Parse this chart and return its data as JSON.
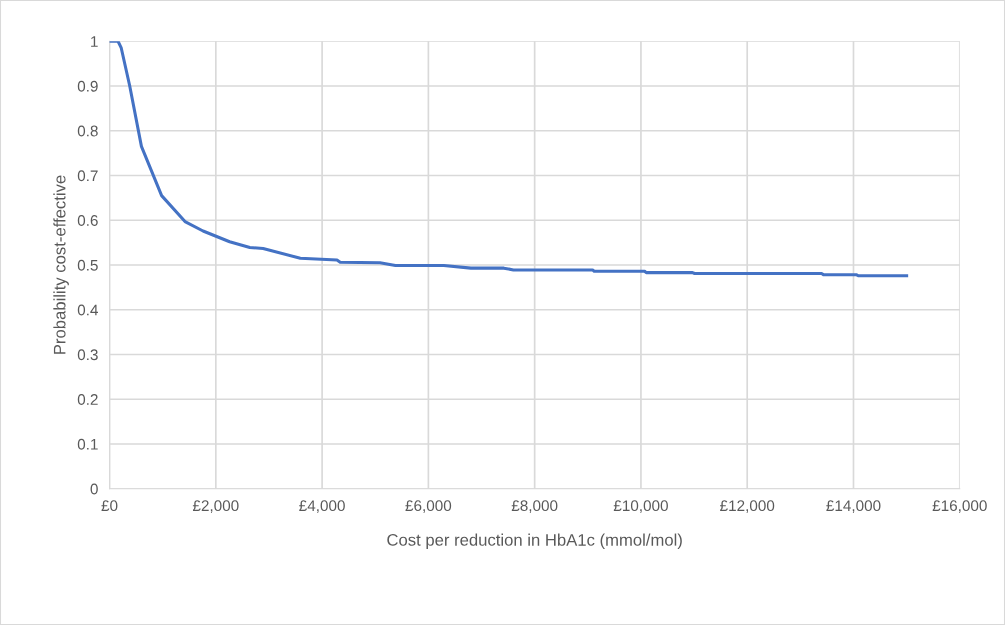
{
  "chart_data": {
    "type": "line",
    "xlabel": "Cost per reduction in HbA1c (mmol/mol)",
    "ylabel": "Probability cost-effective",
    "series": [
      {
        "color": "#4472c4",
        "x": [
          0,
          160,
          220,
          380,
          600,
          980,
          1420,
          1760,
          2260,
          2640,
          2890,
          3590,
          4280,
          4340,
          5090,
          5380,
          6290,
          6800,
          7420,
          7600,
          9090,
          9120,
          10070,
          10100,
          10970,
          11010,
          13400,
          13440,
          14060,
          14090,
          15000
        ],
        "values": [
          1.0,
          1.0,
          0.985,
          0.9,
          0.765,
          0.655,
          0.597,
          0.576,
          0.552,
          0.539,
          0.537,
          0.515,
          0.511,
          0.506,
          0.505,
          0.499,
          0.499,
          0.493,
          0.493,
          0.489,
          0.489,
          0.486,
          0.486,
          0.483,
          0.483,
          0.481,
          0.481,
          0.478,
          0.478,
          0.476,
          0.476
        ]
      }
    ],
    "xlim": [
      0,
      16000
    ],
    "ylim": [
      0,
      1
    ],
    "xticks": [
      {
        "value": 0,
        "label": "£0"
      },
      {
        "value": 2000,
        "label": "£2,000"
      },
      {
        "value": 4000,
        "label": "£4,000"
      },
      {
        "value": 6000,
        "label": "£6,000"
      },
      {
        "value": 8000,
        "label": "£8,000"
      },
      {
        "value": 10000,
        "label": "£10,000"
      },
      {
        "value": 12000,
        "label": "£12,000"
      },
      {
        "value": 14000,
        "label": "£14,000"
      },
      {
        "value": 16000,
        "label": "£16,000"
      }
    ],
    "yticks": [
      0,
      0.1,
      0.2,
      0.3,
      0.4,
      0.5,
      0.6,
      0.7,
      0.8,
      0.9,
      1
    ],
    "grid": true,
    "marker": "none",
    "line_style": "solid"
  }
}
